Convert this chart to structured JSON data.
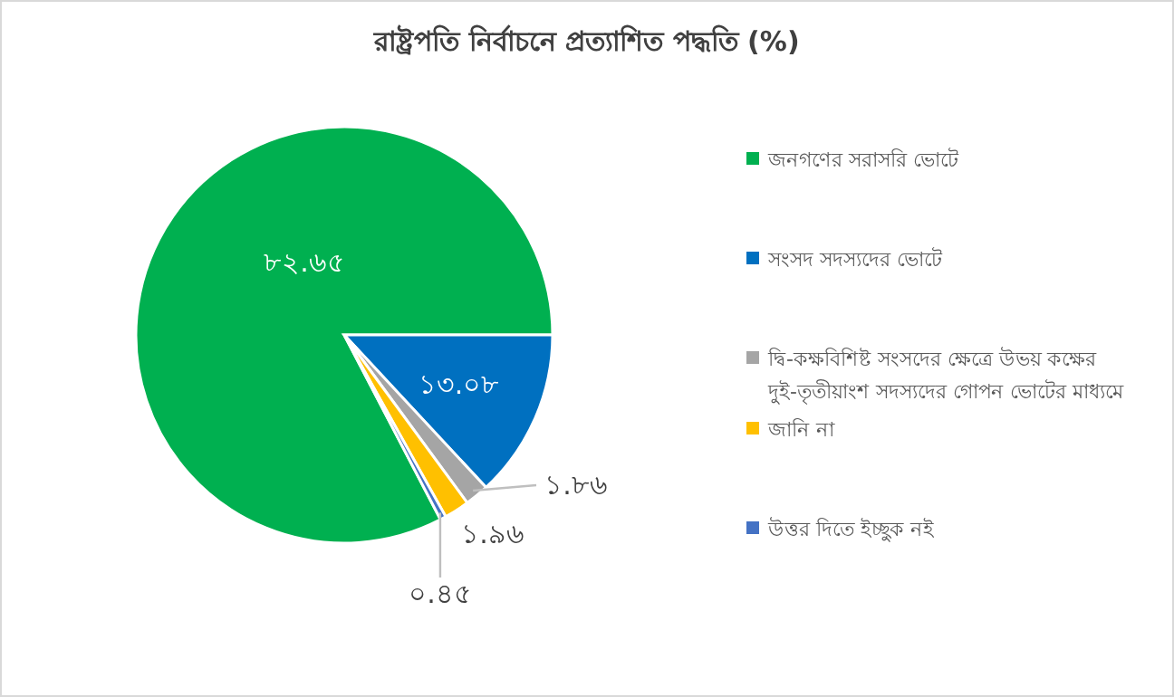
{
  "chart_data": {
    "type": "pie",
    "title": "রাষ্ট্রপতি নির্বাচনে প্রত্যাশিত পদ্ধতি (%)",
    "categories": [
      "জনগণের সরাসরি ভোটে",
      "সংসদ সদস্যদের ভোটে",
      "দ্বি-কক্ষবিশিষ্ট সংসদের ক্ষেত্রে উভয় কক্ষের দুই-তৃতীয়াংশ সদস্যদের গোপন ভোটের মাধ্যমে",
      "জানি না",
      "উত্তর দিতে ইচ্ছুক নই"
    ],
    "values": [
      82.65,
      13.08,
      1.86,
      1.96,
      0.45
    ],
    "value_labels": [
      "৮২.৬৫",
      "১৩.০৮",
      "১.৮৬",
      "১.৯৬",
      "০.৪৫"
    ],
    "colors": [
      "#00b050",
      "#0070c0",
      "#a5a5a5",
      "#ffc000",
      "#4472c4"
    ],
    "legend": "right"
  }
}
